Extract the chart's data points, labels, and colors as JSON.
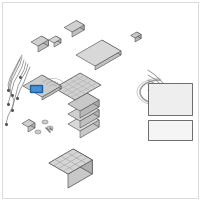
{
  "bg": "#f0f0ee",
  "white": "#ffffff",
  "lt_gray": "#d8d8d8",
  "md_gray": "#b8b8b8",
  "dk_gray": "#888888",
  "blue_hi": "#4a8fd4",
  "blue_bd": "#1a5fa0",
  "line_col": "#666666",
  "figsize": [
    2.0,
    2.0
  ],
  "dpi": 100
}
